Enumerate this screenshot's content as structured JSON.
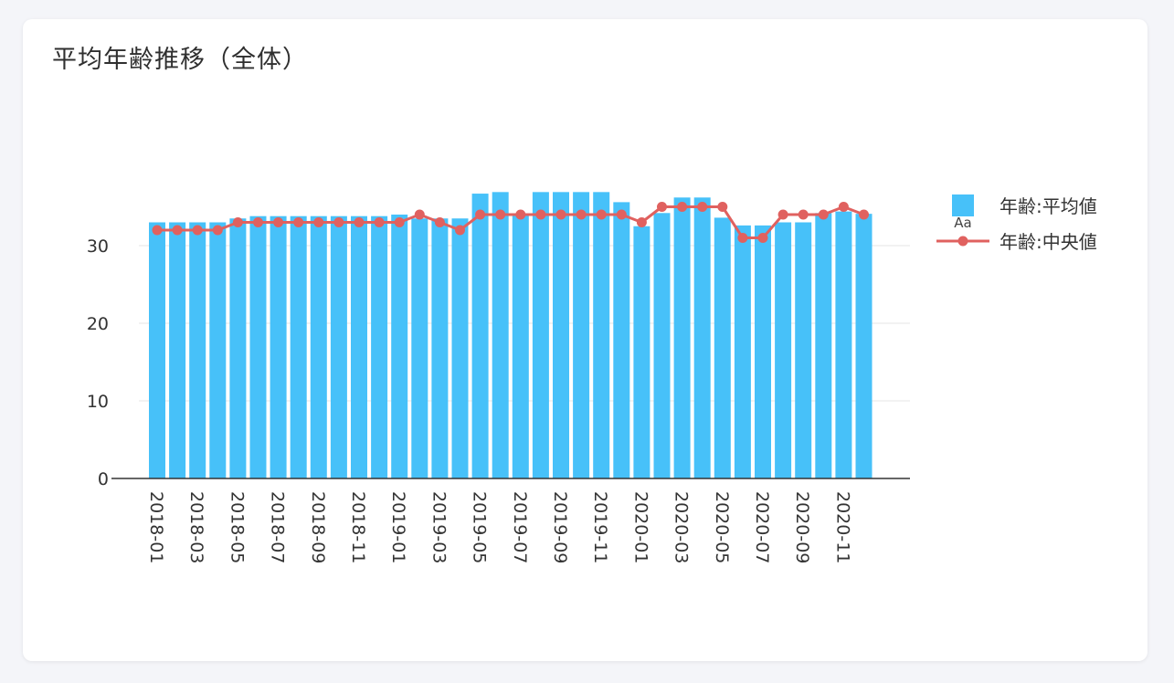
{
  "card": {
    "title": "平均年齢推移（全体）"
  },
  "colors": {
    "bar": "#47c1f9",
    "line": "#e0615f",
    "grid": "#e6e6e6",
    "axis": "#333333"
  },
  "legend": {
    "position": "top-right",
    "bar_marker_text": "Aa"
  },
  "chart_data": {
    "type": "bar",
    "x": [
      "2018-01",
      "2018-02",
      "2018-03",
      "2018-04",
      "2018-05",
      "2018-06",
      "2018-07",
      "2018-08",
      "2018-09",
      "2018-10",
      "2018-11",
      "2018-12",
      "2019-01",
      "2019-02",
      "2019-03",
      "2019-04",
      "2019-05",
      "2019-06",
      "2019-07",
      "2019-08",
      "2019-09",
      "2019-10",
      "2019-11",
      "2019-12",
      "2020-01",
      "2020-02",
      "2020-03",
      "2020-04",
      "2020-05",
      "2020-06",
      "2020-07",
      "2020-08",
      "2020-09",
      "2020-10",
      "2020-11",
      "2020-12"
    ],
    "xtick_labels": [
      "2018-01",
      "2018-03",
      "2018-05",
      "2018-07",
      "2018-09",
      "2018-11",
      "2019-01",
      "2019-03",
      "2019-05",
      "2019-07",
      "2019-09",
      "2019-11",
      "2020-01",
      "2020-03",
      "2020-05",
      "2020-07",
      "2020-09",
      "2020-11"
    ],
    "series": [
      {
        "name": "年齢:平均値",
        "type": "bar",
        "values": [
          33,
          33,
          33,
          33,
          33.5,
          33.8,
          33.8,
          33.8,
          33.8,
          33.8,
          33.8,
          33.8,
          34,
          33.5,
          33.5,
          33.5,
          36.7,
          36.9,
          34,
          36.9,
          36.9,
          36.9,
          36.9,
          35.6,
          32.5,
          34.2,
          36.2,
          36.2,
          33.6,
          32.6,
          32.6,
          33,
          33,
          34.2,
          34.4,
          34.1
        ]
      },
      {
        "name": "年齢:中央値",
        "type": "line",
        "values": [
          32,
          32,
          32,
          32,
          33,
          33,
          33,
          33,
          33,
          33,
          33,
          33,
          33,
          34,
          33,
          32,
          34,
          34,
          34,
          34,
          34,
          34,
          34,
          34,
          33,
          35,
          35,
          35,
          35,
          31,
          31,
          34,
          34,
          34,
          35,
          34
        ]
      }
    ],
    "ylim": [
      0,
      40
    ],
    "yticks": [
      0,
      10,
      20,
      30
    ],
    "grid": true
  }
}
